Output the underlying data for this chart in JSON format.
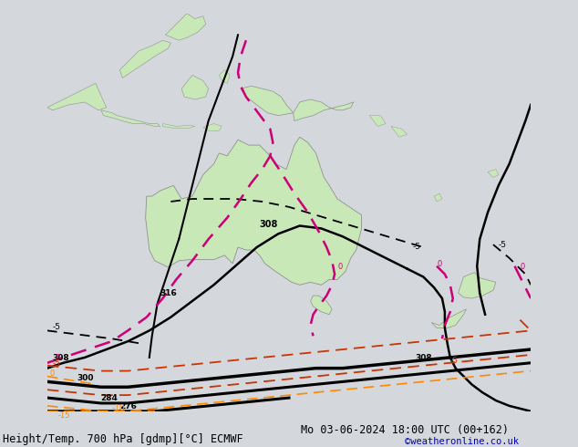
{
  "title_left": "Height/Temp. 700 hPa [gdmp][°C] ECMWF",
  "title_right": "Mo 03-06-2024 18:00 UTC (00+162)",
  "credit": "©weatheronline.co.uk",
  "bg_color": "#d4d8dc",
  "land_color": "#c8e8b8",
  "land_border_color": "#909090",
  "ocean_color": "#d4d8dc",
  "contour_black_color": "#000000",
  "contour_magenta_color": "#cc0077",
  "contour_red_color": "#cc3300",
  "contour_orange_color": "#ff8800",
  "font_size_title": 8.5,
  "font_size_labels": 7,
  "font_size_credit": 7.5,
  "xlim": [
    95,
    185
  ],
  "ylim": [
    -62,
    12
  ],
  "figw": 6.34,
  "figh": 4.9
}
